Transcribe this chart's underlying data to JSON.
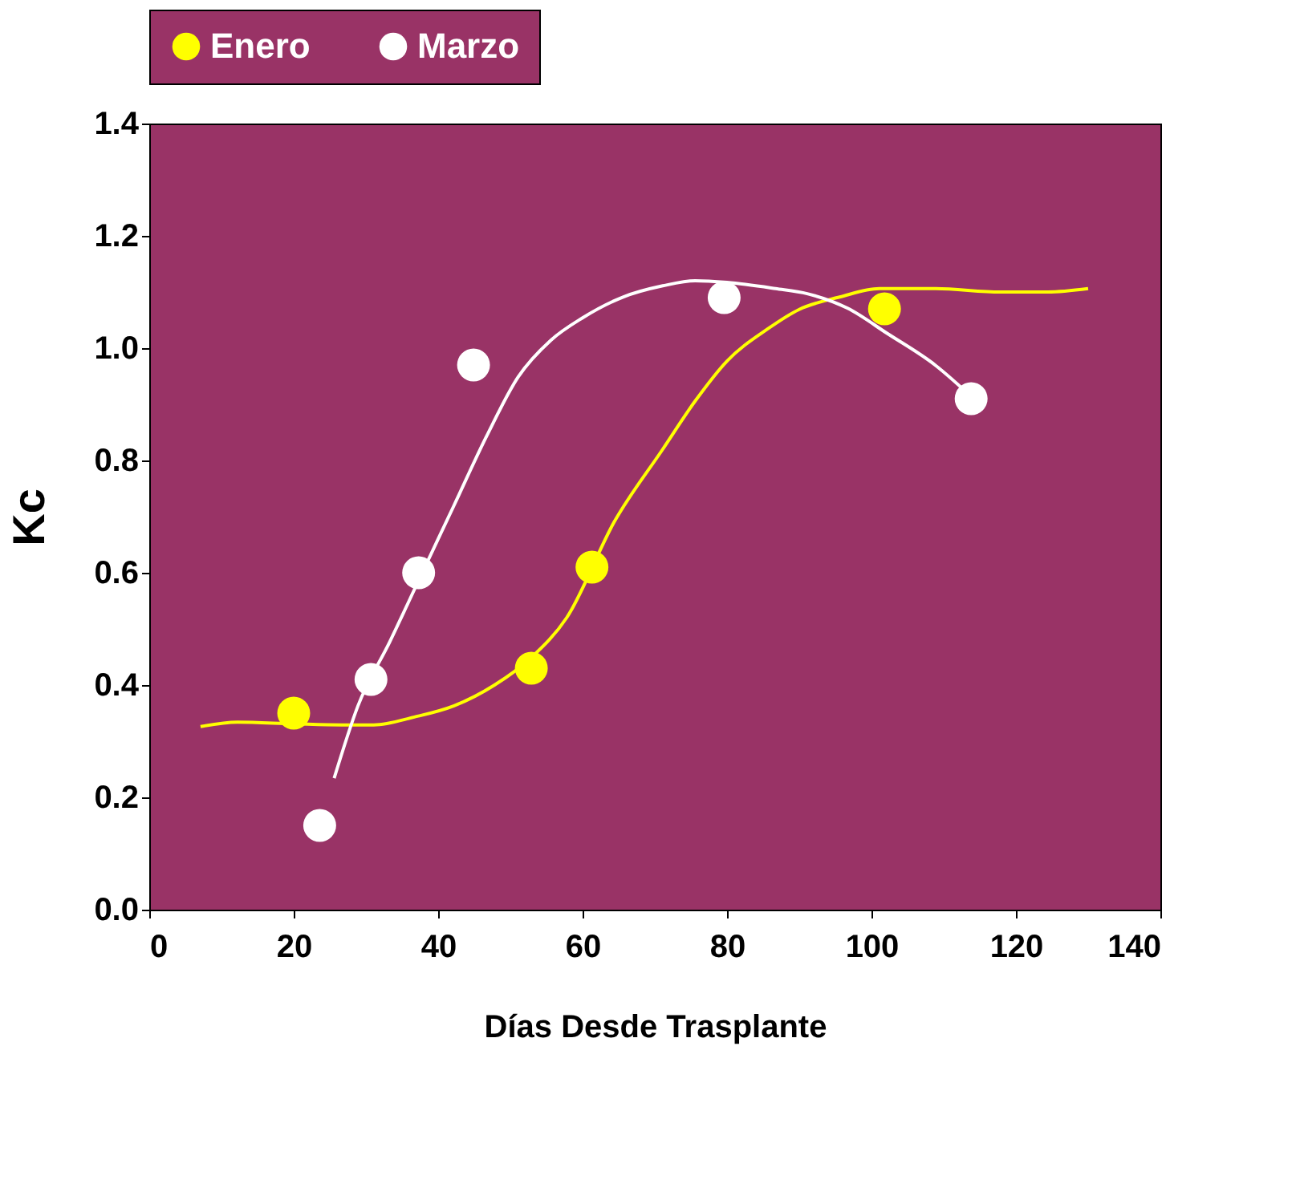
{
  "chart_data": {
    "type": "scatter",
    "xlabel": "Días  Desde Trasplante",
    "ylabel": "Kc",
    "xlim": [
      0,
      140
    ],
    "xticks": [
      0,
      20,
      40,
      60,
      80,
      100,
      120,
      140
    ],
    "ylim": [
      0,
      1.4
    ],
    "yticks": [
      {
        "value": 0,
        "label": "0.0"
      },
      {
        "value": 0.2,
        "label": "0.2"
      },
      {
        "value": 0.4,
        "label": "0.4"
      },
      {
        "value": 0.6,
        "label": "0.6"
      },
      {
        "value": 0.8,
        "label": "0.8"
      },
      {
        "value": 1.0,
        "label": "1.0"
      },
      {
        "value": 1.2,
        "label": "1.2"
      },
      {
        "value": 1.4,
        "label": "1.4"
      }
    ],
    "grid": false,
    "legend": "top",
    "series": [
      {
        "type": "line",
        "marker": "none",
        "color": "#ffff00",
        "x": [
          7.1,
          12.2,
          20,
          26.7,
          31.1,
          36.7,
          42.2,
          47.8,
          52.9,
          57.8,
          64.4,
          71.1,
          75.6,
          80,
          85.6,
          90,
          95.6,
          101.1,
          108.9,
          117.8,
          124.4,
          130
        ],
        "values": [
          0.326,
          0.334,
          0.331,
          0.329,
          0.329,
          0.343,
          0.363,
          0.4,
          0.449,
          0.52,
          0.691,
          0.82,
          0.906,
          0.977,
          1.034,
          1.069,
          1.091,
          1.106,
          1.106,
          1.1,
          1.1,
          1.106
        ]
      },
      {
        "type": "line",
        "marker": "none",
        "color": "#ffffff",
        "x": [
          25.6,
          28.9,
          33.3,
          37.8,
          42.2,
          46.7,
          51.1,
          55.6,
          60,
          65.6,
          71.1,
          75.6,
          80,
          86.7,
          91.1,
          96.7,
          102.2,
          108.9,
          113.8
        ],
        "values": [
          0.234,
          0.363,
          0.477,
          0.6,
          0.72,
          0.843,
          0.949,
          1.014,
          1.054,
          1.091,
          1.111,
          1.12,
          1.117,
          1.106,
          1.097,
          1.071,
          1.026,
          0.969,
          0.914
        ]
      },
      {
        "marker": "circle",
        "name": "Enero",
        "color": "#ffff00",
        "x": [
          20,
          52.9,
          61.3,
          101.8
        ],
        "values": [
          0.35,
          0.43,
          0.61,
          1.07
        ]
      },
      {
        "marker": "circle",
        "name": "Marzo",
        "color": "#ffffff",
        "x": [
          23.6,
          30.7,
          37.3,
          44.9,
          79.6,
          113.8
        ],
        "values": [
          0.15,
          0.41,
          0.6,
          0.97,
          1.09,
          0.91
        ]
      }
    ]
  }
}
